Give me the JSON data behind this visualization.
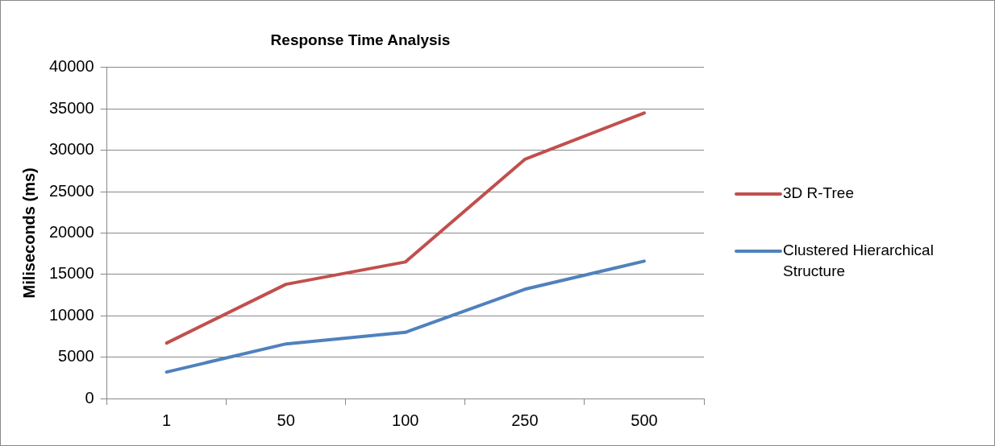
{
  "chart_data": {
    "type": "line",
    "title": "Response Time Analysis",
    "ylabel": "Miliseconds (ms)",
    "categories": [
      "1",
      "50",
      "100",
      "250",
      "500"
    ],
    "series": [
      {
        "name": "3D R-Tree",
        "color": "#c0504d",
        "values": [
          6700,
          13800,
          16500,
          28900,
          34500
        ]
      },
      {
        "name": "Clustered Hierarchical Structure",
        "color": "#4f81bd",
        "values": [
          3200,
          6600,
          8000,
          13200,
          16600
        ]
      }
    ],
    "ylim": [
      0,
      40000
    ],
    "yticks": [
      0,
      5000,
      10000,
      15000,
      20000,
      25000,
      30000,
      35000,
      40000
    ],
    "grid": "y",
    "legend": "right",
    "marker": "none",
    "line_style": "solid"
  }
}
